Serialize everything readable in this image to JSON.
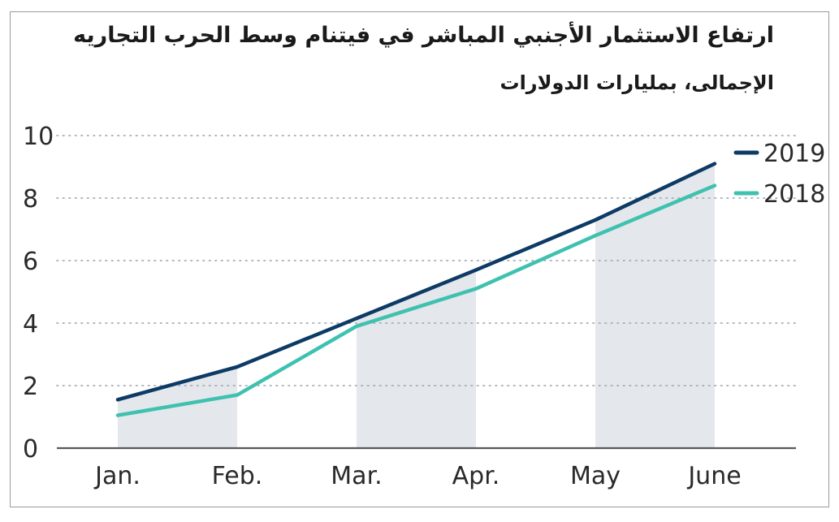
{
  "chart_data": {
    "type": "line",
    "title": "ارتفاع الاستثمار الأجنبي المباشر في فيتنام وسط الحرب التجاريه",
    "subtitle": "الإجمالى، بمليارات الدولارات",
    "categories": [
      "Jan.",
      "Feb.",
      "Mar.",
      "Apr.",
      "May",
      "June"
    ],
    "series": [
      {
        "name": "2019",
        "values": [
          1.55,
          2.6,
          4.15,
          5.7,
          7.3,
          9.1
        ],
        "color": "#0d3b66"
      },
      {
        "name": "2018",
        "values": [
          1.05,
          1.7,
          3.9,
          5.1,
          6.8,
          8.4
        ],
        "color": "#3fc1b0"
      }
    ],
    "ylim": [
      0,
      10
    ],
    "yticks": [
      0,
      2,
      4,
      6,
      8,
      10
    ],
    "grid": true,
    "legend_position": "top-right",
    "shaded_bands": [
      [
        "Jan.",
        "Feb."
      ],
      [
        "Mar.",
        "Apr."
      ],
      [
        "May",
        "June"
      ]
    ],
    "band_color": "#e4e7eb"
  }
}
